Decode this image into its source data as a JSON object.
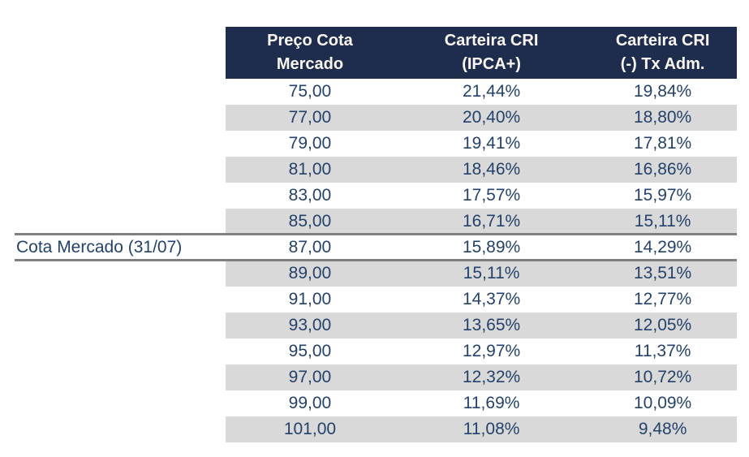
{
  "table": {
    "columns": [
      {
        "id": "preco",
        "label_line1": "Preço Cota",
        "label_line2": "Mercado"
      },
      {
        "id": "ipca",
        "label_line1": "Carteira CRI",
        "label_line2": "(IPCA+)"
      },
      {
        "id": "txadm",
        "label_line1": "Carteira CRI",
        "label_line2": "(-) Tx Adm."
      }
    ],
    "rows": [
      {
        "preco": "75,00",
        "ipca": "21,44%",
        "txadm": "19,84%"
      },
      {
        "preco": "77,00",
        "ipca": "20,40%",
        "txadm": "18,80%"
      },
      {
        "preco": "79,00",
        "ipca": "19,41%",
        "txadm": "17,81%"
      },
      {
        "preco": "81,00",
        "ipca": "18,46%",
        "txadm": "16,86%"
      },
      {
        "preco": "83,00",
        "ipca": "17,57%",
        "txadm": "15,97%"
      },
      {
        "preco": "85,00",
        "ipca": "16,71%",
        "txadm": "15,11%"
      },
      {
        "preco": "87,00",
        "ipca": "15,89%",
        "txadm": "14,29%"
      },
      {
        "preco": "89,00",
        "ipca": "15,11%",
        "txadm": "13,51%"
      },
      {
        "preco": "91,00",
        "ipca": "14,37%",
        "txadm": "12,77%"
      },
      {
        "preco": "93,00",
        "ipca": "13,65%",
        "txadm": "12,05%"
      },
      {
        "preco": "95,00",
        "ipca": "12,97%",
        "txadm": "11,37%"
      },
      {
        "preco": "97,00",
        "ipca": "12,32%",
        "txadm": "10,72%"
      },
      {
        "preco": "99,00",
        "ipca": "11,69%",
        "txadm": "10,09%"
      },
      {
        "preco": "101,00",
        "ipca": "11,08%",
        "txadm": "9,48%"
      }
    ],
    "highlight_row_index": 6
  },
  "annotation": {
    "label": "Cota Mercado (31/07)"
  },
  "colors": {
    "header_bg": "#1E2D4E",
    "header_text": "#FAF7F2",
    "body_text": "#24426B",
    "row_bg": "#FFFFFF",
    "row_alt_bg": "#D9D9D9",
    "marker_line": "#808080"
  }
}
